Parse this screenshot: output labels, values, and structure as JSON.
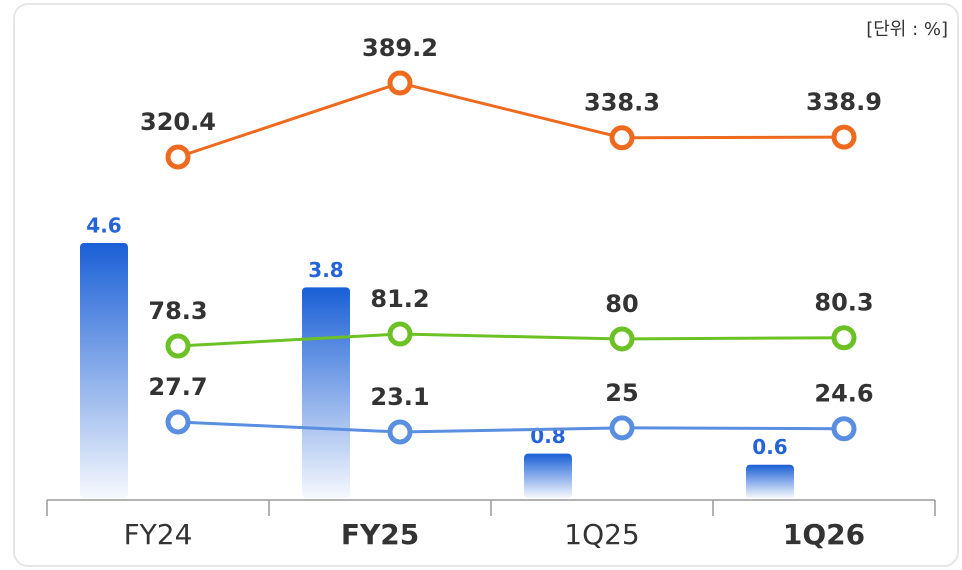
{
  "chart_data": {
    "type": "bar_line",
    "unit": "[단위 : %]",
    "categories": [
      "FY24",
      "FY25",
      "1Q25",
      "1Q26"
    ],
    "bar_color": "#1a5fd6",
    "values": [
      4.6,
      3.8,
      0.8,
      0.6
    ],
    "series": [
      {
        "color": "#ee6a1e",
        "values": [
          320.4,
          389.2,
          338.3,
          338.9
        ]
      },
      {
        "color": "#6cc224",
        "values": [
          78.3,
          81.2,
          80,
          80.3
        ]
      },
      {
        "color": "#5a8ee0",
        "values": [
          27.7,
          23.1,
          25,
          24.6
        ]
      }
    ]
  }
}
